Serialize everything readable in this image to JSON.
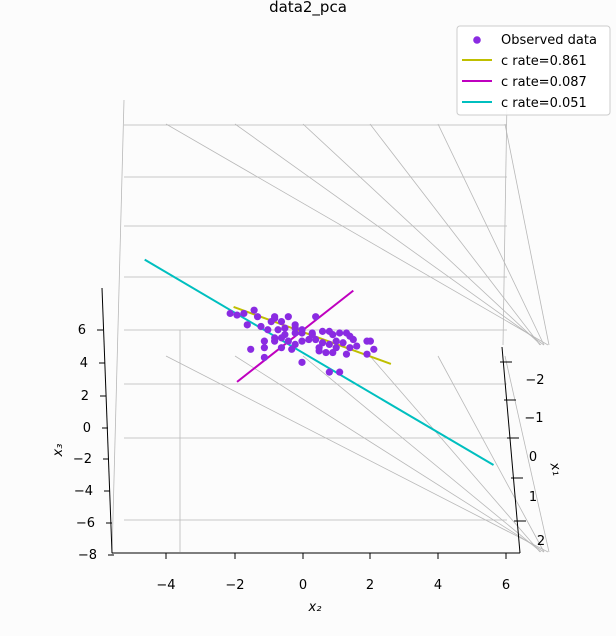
{
  "chart_data": {
    "type": "scatter",
    "title": "data2_pca",
    "xlabel": "x₂",
    "ylabel": "x₃",
    "zlabel": "x₁",
    "x2_ticks": [
      "−4",
      "−2",
      "0",
      "2",
      "4",
      "6"
    ],
    "x3_ticks": [
      "−8",
      "−6",
      "−4",
      "−2",
      "0",
      "2",
      "4",
      "6"
    ],
    "x1_ticks": [
      "−2",
      "−1",
      "0",
      "1",
      "2"
    ],
    "legend": {
      "placement": "top-right",
      "entries": [
        {
          "label": "Observed data",
          "color": "#8a2be2",
          "kind": "marker"
        },
        {
          "label": "c rate=0.861",
          "color": "#bfbf00",
          "kind": "line"
        },
        {
          "label": "c rate=0.087",
          "color": "#bf00bf",
          "kind": "line"
        },
        {
          "label": "c rate=0.051",
          "color": "#00bfbf",
          "kind": "line"
        }
      ]
    },
    "components": [
      {
        "name": "c rate=0.861",
        "color": "#bfbf00",
        "from": [
          -2.0,
          1.6
        ],
        "to": [
          2.6,
          -1.9
        ]
      },
      {
        "name": "c rate=0.087",
        "color": "#bf00bf",
        "from": [
          -1.9,
          -3.0
        ],
        "to": [
          1.5,
          2.6
        ]
      },
      {
        "name": "c rate=0.051",
        "color": "#00bfbf",
        "from": [
          -4.6,
          4.5
        ],
        "to": [
          5.6,
          -8.1
        ]
      }
    ],
    "observed": [
      [
        -2.1,
        1.2
      ],
      [
        -1.7,
        1.2
      ],
      [
        -1.3,
        1.0
      ],
      [
        -0.8,
        1.0
      ],
      [
        -0.4,
        1.0
      ],
      [
        0.4,
        1.0
      ],
      [
        -1.4,
        1.4
      ],
      [
        -0.8,
        0.9
      ],
      [
        -0.9,
        0.7
      ],
      [
        -0.6,
        0.7
      ],
      [
        -0.2,
        0.5
      ],
      [
        -0.5,
        0.3
      ],
      [
        -1.6,
        0.5
      ],
      [
        -1.2,
        0.4
      ],
      [
        -1.0,
        0.2
      ],
      [
        -0.5,
        -0.1
      ],
      [
        -0.2,
        0.0
      ],
      [
        -0.2,
        0.3
      ],
      [
        0.0,
        0.0
      ],
      [
        0.0,
        0.2
      ],
      [
        0.3,
        0.0
      ],
      [
        0.6,
        0.1
      ],
      [
        0.8,
        0.1
      ],
      [
        0.9,
        -0.1
      ],
      [
        1.1,
        0.0
      ],
      [
        1.3,
        0.0
      ],
      [
        1.4,
        -0.2
      ],
      [
        1.5,
        -0.4
      ],
      [
        1.9,
        -0.5
      ],
      [
        2.0,
        -0.5
      ],
      [
        -1.1,
        -0.5
      ],
      [
        -0.8,
        -0.5
      ],
      [
        -0.6,
        -0.3
      ],
      [
        -0.4,
        -0.5
      ],
      [
        -0.2,
        -0.7
      ],
      [
        0.0,
        -0.5
      ],
      [
        0.4,
        -0.4
      ],
      [
        0.6,
        -0.6
      ],
      [
        0.8,
        -0.7
      ],
      [
        1.0,
        -0.9
      ],
      [
        1.2,
        -0.6
      ],
      [
        1.4,
        -0.9
      ],
      [
        1.6,
        -0.8
      ],
      [
        2.1,
        -1.0
      ],
      [
        -1.5,
        -1.0
      ],
      [
        -1.1,
        -0.9
      ],
      [
        -0.6,
        -0.9
      ],
      [
        -0.3,
        -1.0
      ],
      [
        0.5,
        -1.1
      ],
      [
        0.9,
        -1.2
      ],
      [
        1.3,
        -1.3
      ],
      [
        -1.1,
        -1.5
      ],
      [
        0.7,
        -1.2
      ],
      [
        1.9,
        -1.3
      ],
      [
        0.0,
        -1.8
      ],
      [
        0.8,
        -2.4
      ],
      [
        1.1,
        -2.4
      ],
      [
        -0.8,
        -0.3
      ],
      [
        0.2,
        -0.4
      ],
      [
        0.5,
        -0.9
      ],
      [
        1.0,
        -0.5
      ],
      [
        0.3,
        -0.1
      ],
      [
        -0.7,
        0.2
      ],
      [
        -1.9,
        1.1
      ]
    ]
  }
}
